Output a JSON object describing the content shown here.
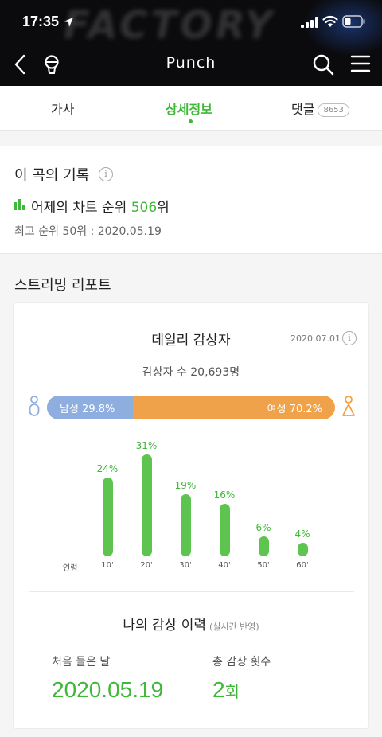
{
  "status_bar": {
    "time": "17:35"
  },
  "nav": {
    "title": "Punch"
  },
  "tabs": [
    {
      "label": "가사"
    },
    {
      "label": "상세정보"
    },
    {
      "label": "댓글",
      "badge": "8653"
    }
  ],
  "record": {
    "heading": "이 곡의 기록",
    "yesterday_prefix": "어제의 차트 순위 ",
    "yesterday_rank": "506",
    "yesterday_suffix": "위",
    "best": "최고 순위 50위 : 2020.05.19"
  },
  "streaming": {
    "heading": "스트리밍 리포트",
    "daily_title": "데일리 감상자",
    "date": "2020.07.01",
    "listeners": "감상자 수 20,693명",
    "male_label": "남성 29.8%",
    "female_label": "여성 70.2%",
    "male_share": 29.8,
    "colors": {
      "male": "#8faee0",
      "female": "#f0a24b",
      "accent": "#3db837"
    }
  },
  "chart_data": {
    "type": "bar",
    "xlabel": "연령",
    "categories": [
      "10'",
      "20'",
      "30'",
      "40'",
      "50'",
      "60'"
    ],
    "values": [
      24,
      31,
      19,
      16,
      6,
      4
    ],
    "value_labels": [
      "24%",
      "31%",
      "19%",
      "16%",
      "6%",
      "4%"
    ]
  },
  "my_history": {
    "title": "나의 감상 이력",
    "subtitle": "(실시간 반영)",
    "first_label": "처음 들은 날",
    "first_value": "2020.05.19",
    "total_label": "총 감상 횟수",
    "total_value": "2",
    "total_unit": "회"
  }
}
